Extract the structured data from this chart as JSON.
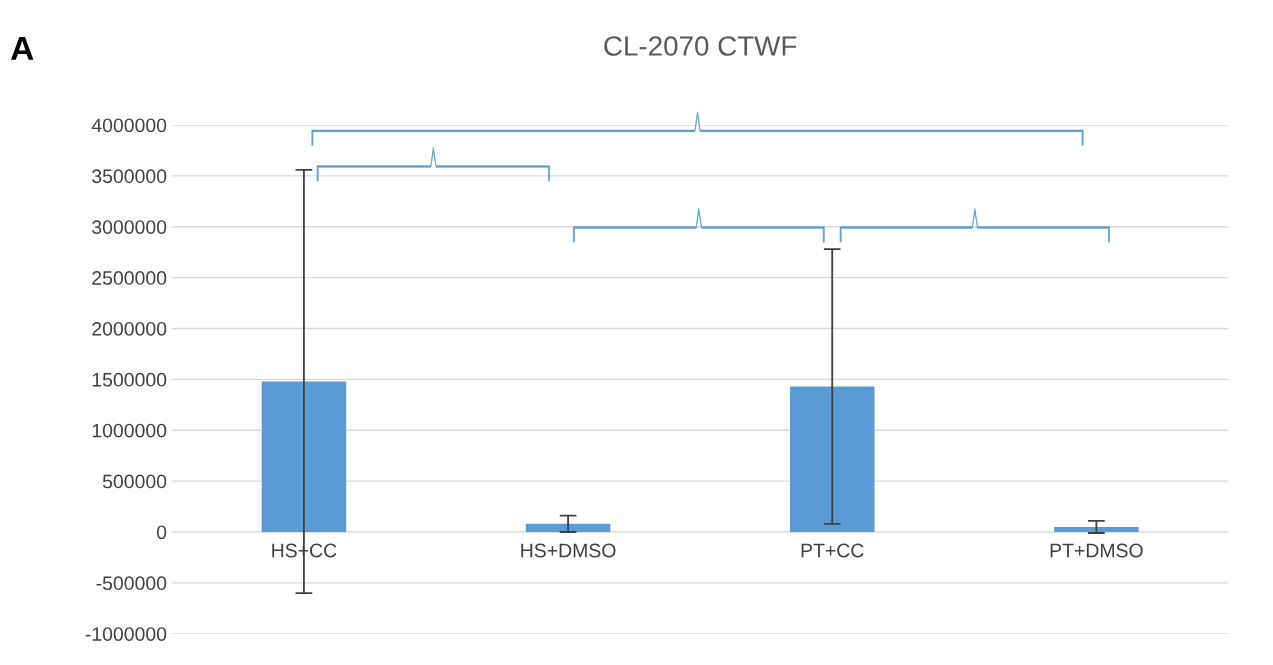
{
  "chart_data": {
    "type": "bar",
    "title": "CL-2070 CTWF",
    "categories": [
      "HS+CC",
      "HS+DMSO",
      "PT+CC",
      "PT+DMSO"
    ],
    "values": [
      1480000,
      80000,
      1430000,
      50000
    ],
    "errors": [
      2080000,
      80000,
      1350000,
      60000
    ],
    "color": "#5b9bd5",
    "ylim": [
      -1000000,
      4000000
    ],
    "yticks": [
      -1000000,
      -500000,
      0,
      500000,
      1000000,
      1500000,
      2000000,
      2500000,
      3000000,
      3500000,
      4000000
    ],
    "grid": "y",
    "annotations": [
      "A"
    ]
  }
}
